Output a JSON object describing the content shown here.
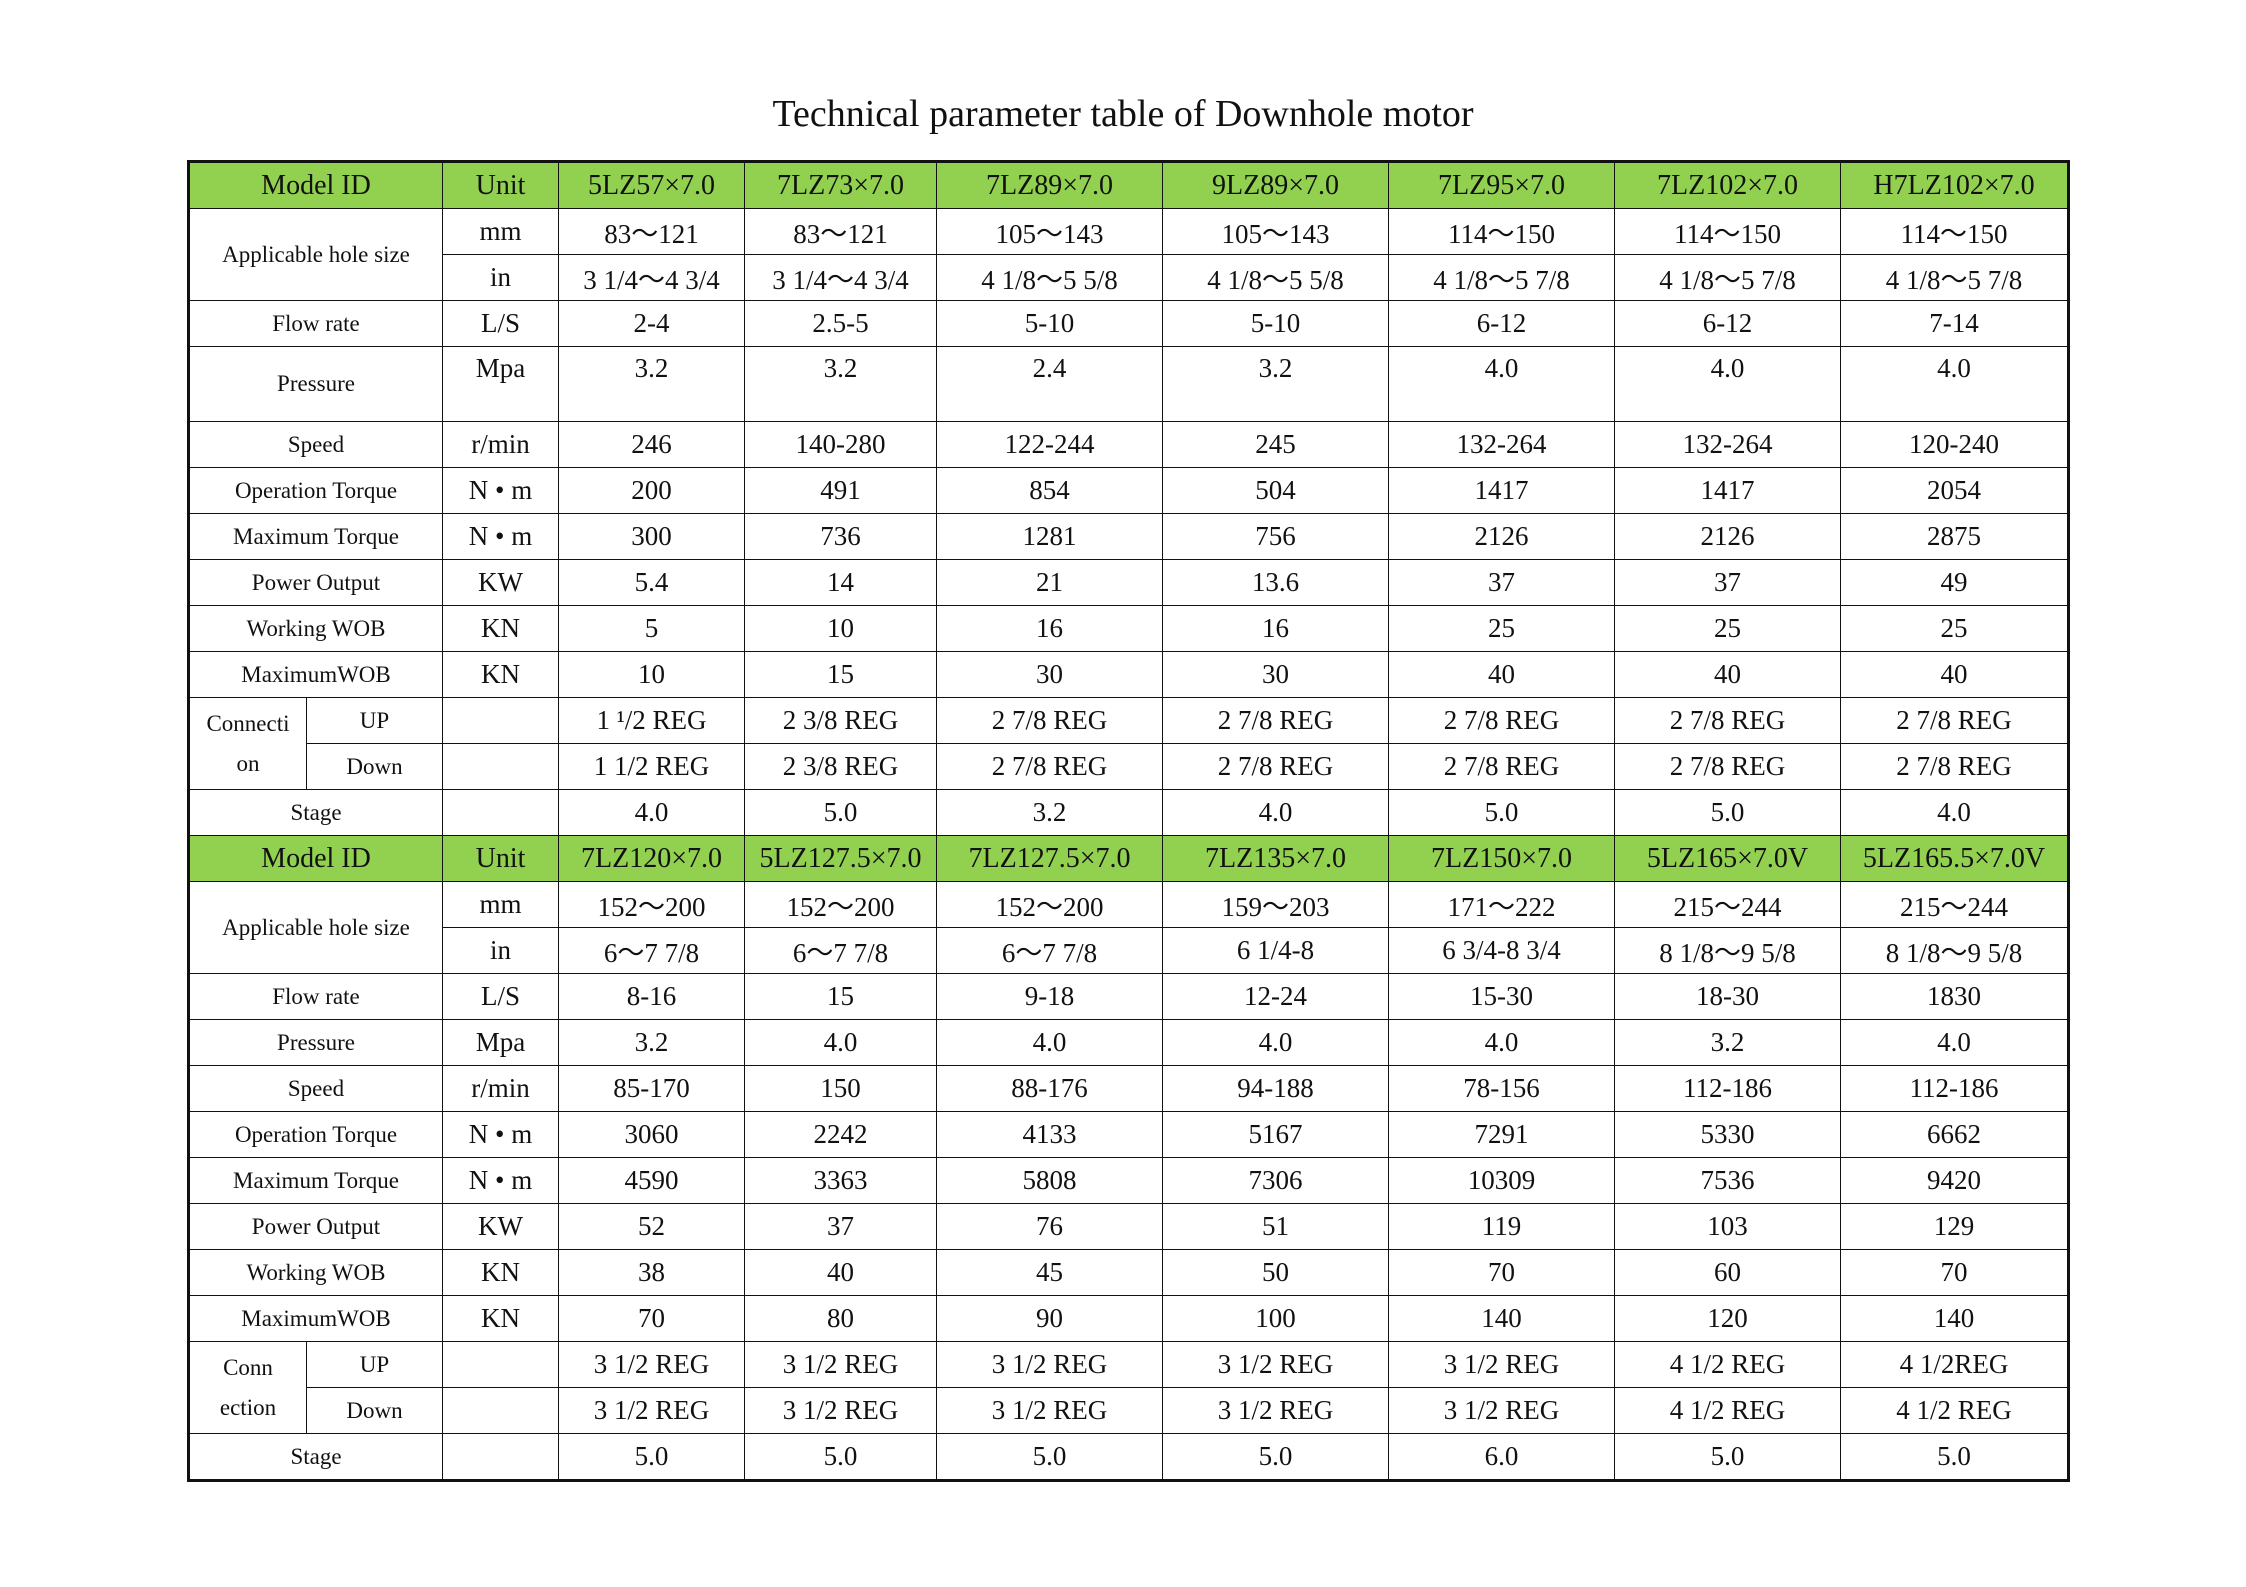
{
  "title": "Technical parameter table of Downhole motor",
  "blocks": [
    {
      "header": {
        "model_id": "Model ID",
        "unit": "Unit",
        "models": [
          "5LZ57×7.0",
          "7LZ73×7.0",
          "7LZ89×7.0",
          "9LZ89×7.0",
          "7LZ95×7.0",
          "7LZ102×7.0",
          "H7LZ102×7.0"
        ]
      },
      "rows": [
        {
          "label": "Applicable hole size",
          "parts": [
            {
              "unit": "mm",
              "values": [
                "83～121",
                "83～121",
                "105～143",
                "105～143",
                "114～150",
                "114～150",
                "114～150"
              ]
            },
            {
              "unit": "in",
              "values": [
                "3 1/4～4 3/4",
                "3 1/4～4 3/4",
                "4 1/8～5 5/8",
                "4 1/8～5 5/8",
                "4 1/8～5 7/8",
                "4 1/8～5 7/8",
                "4 1/8～5 7/8"
              ]
            }
          ]
        },
        {
          "label": "Flow rate",
          "parts": [
            {
              "unit": "L/S",
              "values": [
                "2-4",
                "2.5-5",
                "5-10",
                "5-10",
                "6-12",
                "6-12",
                "7-14"
              ]
            }
          ]
        },
        {
          "label": "Pressure",
          "parts": [
            {
              "unit": "Mpa",
              "values": [
                "3.2",
                "3.2",
                "2.4",
                "3.2",
                "4.0",
                "4.0",
                "4.0"
              ]
            }
          ]
        },
        {
          "label": "Speed",
          "parts": [
            {
              "unit": "r/min",
              "values": [
                "246",
                "140-280",
                "122-244",
                "245",
                "132-264",
                "132-264",
                "120-240"
              ]
            }
          ]
        },
        {
          "label": "Operation Torque",
          "parts": [
            {
              "unit": "N • m",
              "values": [
                "200",
                "491",
                "854",
                "504",
                "1417",
                "1417",
                "2054"
              ]
            }
          ]
        },
        {
          "label": "Maximum Torque",
          "parts": [
            {
              "unit": "N • m",
              "values": [
                "300",
                "736",
                "1281",
                "756",
                "2126",
                "2126",
                "2875"
              ]
            }
          ]
        },
        {
          "label": "Power Output",
          "parts": [
            {
              "unit": "KW",
              "values": [
                "5.4",
                "14",
                "21",
                "13.6",
                "37",
                "37",
                "49"
              ]
            }
          ]
        },
        {
          "label": "Working WOB",
          "parts": [
            {
              "unit": "KN",
              "values": [
                "5",
                "10",
                "16",
                "16",
                "25",
                "25",
                "25"
              ]
            }
          ]
        },
        {
          "label": "MaximumWOB",
          "parts": [
            {
              "unit": "KN",
              "values": [
                "10",
                "15",
                "30",
                "30",
                "40",
                "40",
                "40"
              ]
            }
          ]
        },
        {
          "label_lines": [
            "Connecti",
            "on"
          ],
          "parts": [
            {
              "sublabel": "UP",
              "values": [
                "1 ¹/2 REG",
                "2 3/8 REG",
                "2 7/8 REG",
                "2 7/8 REG",
                "2 7/8 REG",
                "2 7/8 REG",
                "2 7/8 REG"
              ]
            },
            {
              "sublabel": "Down",
              "values": [
                "1 1/2 REG",
                "2 3/8 REG",
                "2 7/8 REG",
                "2 7/8 REG",
                "2 7/8 REG",
                "2 7/8 REG",
                "2 7/8 REG"
              ]
            }
          ]
        },
        {
          "label": "Stage",
          "parts": [
            {
              "values": [
                "4.0",
                "5.0",
                "3.2",
                "4.0",
                "5.0",
                "5.0",
                "4.0"
              ]
            }
          ]
        }
      ]
    },
    {
      "header": {
        "model_id": "Model ID",
        "unit": "Unit",
        "models": [
          "7LZ120×7.0",
          "5LZ127.5×7.0",
          "7LZ127.5×7.0",
          "7LZ135×7.0",
          "7LZ150×7.0",
          "5LZ165×7.0V",
          "5LZ165.5×7.0V"
        ]
      },
      "rows": [
        {
          "label": "Applicable hole size",
          "parts": [
            {
              "unit": "mm",
              "values": [
                "152～200",
                "152～200",
                "152～200",
                "159～203",
                "171～222",
                "215～244",
                "215～244"
              ]
            },
            {
              "unit": "in",
              "values": [
                "6～7 7/8",
                "6～7 7/8",
                "6～7 7/8",
                "6 1/4-8",
                "6 3/4-8 3/4",
                "8 1/8～9 5/8",
                "8 1/8～9 5/8"
              ]
            }
          ]
        },
        {
          "label": "Flow rate",
          "parts": [
            {
              "unit": "L/S",
              "values": [
                "8-16",
                "15",
                "9-18",
                "12-24",
                "15-30",
                "18-30",
                "1830"
              ]
            }
          ]
        },
        {
          "label": "Pressure",
          "parts": [
            {
              "unit": "Mpa",
              "values": [
                "3.2",
                "4.0",
                "4.0",
                "4.0",
                "4.0",
                "3.2",
                "4.0"
              ]
            }
          ]
        },
        {
          "label": "Speed",
          "parts": [
            {
              "unit": "r/min",
              "values": [
                "85-170",
                "150",
                "88-176",
                "94-188",
                "78-156",
                "112-186",
                "112-186"
              ]
            }
          ]
        },
        {
          "label": "Operation Torque",
          "parts": [
            {
              "unit": "N • m",
              "values": [
                "3060",
                "2242",
                "4133",
                "5167",
                "7291",
                "5330",
                "6662"
              ]
            }
          ]
        },
        {
          "label": "Maximum Torque",
          "parts": [
            {
              "unit": "N • m",
              "values": [
                "4590",
                "3363",
                "5808",
                "7306",
                "10309",
                "7536",
                "9420"
              ]
            }
          ]
        },
        {
          "label": "Power Output",
          "parts": [
            {
              "unit": "KW",
              "values": [
                "52",
                "37",
                "76",
                "51",
                "119",
                "103",
                "129"
              ]
            }
          ]
        },
        {
          "label": "Working WOB",
          "parts": [
            {
              "unit": "KN",
              "values": [
                "38",
                "40",
                "45",
                "50",
                "70",
                "60",
                "70"
              ]
            }
          ]
        },
        {
          "label": "MaximumWOB",
          "parts": [
            {
              "unit": "KN",
              "values": [
                "70",
                "80",
                "90",
                "100",
                "140",
                "120",
                "140"
              ]
            }
          ]
        },
        {
          "label_lines": [
            "Conn",
            "ection"
          ],
          "parts": [
            {
              "sublabel": "UP",
              "values": [
                "3 1/2 REG",
                "3 1/2 REG",
                "3 1/2 REG",
                "3 1/2 REG",
                "3 1/2 REG",
                "4 1/2 REG",
                "4 1/2REG"
              ]
            },
            {
              "sublabel": "Down",
              "values": [
                "3 1/2 REG",
                "3 1/2 REG",
                "3 1/2 REG",
                "3 1/2 REG",
                "3 1/2 REG",
                "4 1/2 REG",
                "4 1/2 REG"
              ]
            }
          ]
        },
        {
          "label": "Stage",
          "parts": [
            {
              "values": [
                "5.0",
                "5.0",
                "5.0",
                "5.0",
                "6.0",
                "5.0",
                "5.0"
              ]
            }
          ]
        }
      ]
    }
  ]
}
